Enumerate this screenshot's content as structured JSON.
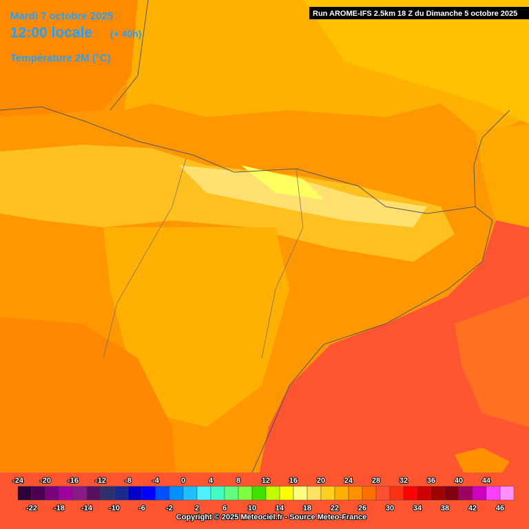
{
  "header": {
    "date": "Mardi 7 octobre 2025",
    "time": "12:00 locale",
    "offset": "(+ 40h)",
    "variable": "Température 2M (°C)",
    "run": "Run AROME-IFS 2.5km 18 Z du Dimanche 5 octobre 2025"
  },
  "legend": {
    "items": [
      {
        "value": -24,
        "color": "#2d0038"
      },
      {
        "value": -22,
        "color": "#4b0050"
      },
      {
        "value": -20,
        "color": "#7a0080"
      },
      {
        "value": -18,
        "color": "#a000a0"
      },
      {
        "value": -16,
        "color": "#8a1a8a"
      },
      {
        "value": -14,
        "color": "#5a1060"
      },
      {
        "value": -12,
        "color": "#303070"
      },
      {
        "value": -10,
        "color": "#1a2a90"
      },
      {
        "value": -8,
        "color": "#0000c8"
      },
      {
        "value": -6,
        "color": "#0000ff"
      },
      {
        "value": -4,
        "color": "#0050ff"
      },
      {
        "value": -2,
        "color": "#0090ff"
      },
      {
        "value": 0,
        "color": "#20c0ff"
      },
      {
        "value": 2,
        "color": "#50f0ff"
      },
      {
        "value": 4,
        "color": "#40ffc0"
      },
      {
        "value": 6,
        "color": "#60ff80"
      },
      {
        "value": 8,
        "color": "#80ff40"
      },
      {
        "value": 10,
        "color": "#40e000"
      },
      {
        "value": 12,
        "color": "#c0ff00"
      },
      {
        "value": 14,
        "color": "#ffff00"
      },
      {
        "value": 16,
        "color": "#ffff80"
      },
      {
        "value": 18,
        "color": "#ffe060"
      },
      {
        "value": 20,
        "color": "#ffd020"
      },
      {
        "value": 22,
        "color": "#ffb000"
      },
      {
        "value": 24,
        "color": "#ff9000"
      },
      {
        "value": 26,
        "color": "#ff7000"
      },
      {
        "value": 28,
        "color": "#ff5030"
      },
      {
        "value": 30,
        "color": "#ff3010"
      },
      {
        "value": 32,
        "color": "#ff0000"
      },
      {
        "value": 34,
        "color": "#d00000"
      },
      {
        "value": 36,
        "color": "#a00000"
      },
      {
        "value": 38,
        "color": "#800010"
      },
      {
        "value": 40,
        "color": "#a00060"
      },
      {
        "value": 42,
        "color": "#d000c0"
      },
      {
        "value": 44,
        "color": "#ff40ff"
      },
      {
        "value": 46,
        "color": "#ff90ff"
      }
    ]
  },
  "copyright": "Copyright © 2025 Meteociel.fr - Source Meteo-France"
}
